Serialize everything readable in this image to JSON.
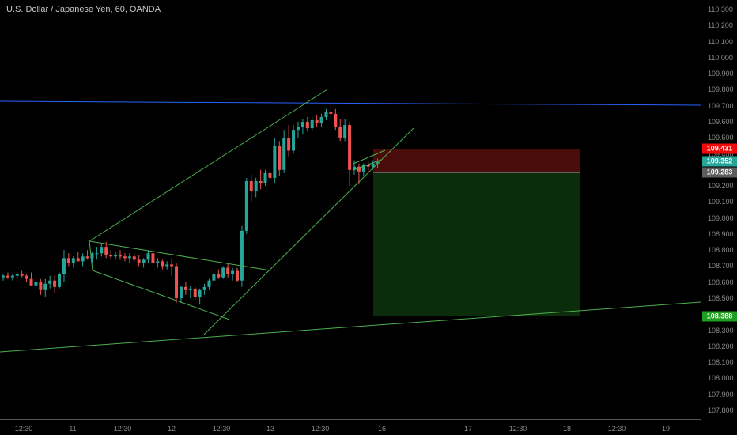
{
  "header": {
    "title": "U.S. Dollar / Japanese Yen, 60, OANDA"
  },
  "colors": {
    "up": "#26a69a",
    "down": "#ef5350",
    "trendline": "#4caf50",
    "resistance": "#2962ff",
    "stop_zone": "#4a0b0b",
    "target_zone": "#0c2d0c",
    "stop_tag": "#f20a0a",
    "current_tag": "#26a69a",
    "entry_tag": "#5d5d5d",
    "target_tag": "#1f9e1f"
  },
  "chart_data": {
    "type": "candlestick",
    "title": "U.S. Dollar / Japanese Yen, 60, OANDA",
    "x_ticks": [
      "12:30",
      "11",
      "12:30",
      "12",
      "12:30",
      "13",
      "12:30",
      "16",
      "17",
      "12:30",
      "18",
      "12:30",
      "19"
    ],
    "y_ticks": [
      "110.300",
      "110.200",
      "110.100",
      "110.000",
      "109.900",
      "109.800",
      "109.700",
      "109.600",
      "109.500",
      "109.400",
      "109.300",
      "109.200",
      "109.100",
      "109.000",
      "108.900",
      "108.800",
      "108.700",
      "108.600",
      "108.500",
      "108.400",
      "108.300",
      "108.200",
      "108.100",
      "108.000",
      "107.900",
      "107.800"
    ],
    "ylim": [
      107.77,
      110.335
    ],
    "price_labels": {
      "stop": "109.431",
      "current": "109.352",
      "entry": "109.283",
      "target": "108.388"
    },
    "position": {
      "entry": 109.283,
      "stop": 109.431,
      "target": 108.388
    },
    "candles": [
      [
        108.63,
        108.65,
        108.61,
        108.64
      ],
      [
        108.64,
        108.66,
        108.62,
        108.63
      ],
      [
        108.63,
        108.65,
        108.61,
        108.64
      ],
      [
        108.64,
        108.66,
        108.62,
        108.65
      ],
      [
        108.65,
        108.67,
        108.63,
        108.64
      ],
      [
        108.64,
        108.65,
        108.6,
        108.62
      ],
      [
        108.62,
        108.66,
        108.58,
        108.58
      ],
      [
        108.58,
        108.62,
        108.55,
        108.6
      ],
      [
        108.6,
        108.62,
        108.52,
        108.55
      ],
      [
        108.55,
        108.62,
        108.51,
        108.59
      ],
      [
        108.59,
        108.64,
        108.56,
        108.61
      ],
      [
        108.61,
        108.64,
        108.53,
        108.57
      ],
      [
        108.57,
        108.66,
        108.56,
        108.65
      ],
      [
        108.65,
        108.8,
        108.6,
        108.75
      ],
      [
        108.75,
        108.78,
        108.7,
        108.72
      ],
      [
        108.72,
        108.76,
        108.69,
        108.75
      ],
      [
        108.75,
        108.79,
        108.73,
        108.73
      ],
      [
        108.73,
        108.78,
        108.7,
        108.76
      ],
      [
        108.76,
        108.8,
        108.74,
        108.75
      ],
      [
        108.75,
        108.79,
        108.72,
        108.78
      ],
      [
        108.78,
        108.82,
        108.74,
        108.78
      ],
      [
        108.78,
        108.84,
        108.76,
        108.82
      ],
      [
        108.82,
        108.85,
        108.75,
        108.77
      ],
      [
        108.77,
        108.8,
        108.74,
        108.76
      ],
      [
        108.76,
        108.79,
        108.74,
        108.77
      ],
      [
        108.77,
        108.8,
        108.74,
        108.76
      ],
      [
        108.76,
        108.78,
        108.73,
        108.75
      ],
      [
        108.75,
        108.78,
        108.72,
        108.76
      ],
      [
        108.76,
        108.78,
        108.73,
        108.74
      ],
      [
        108.74,
        108.77,
        108.7,
        108.72
      ],
      [
        108.72,
        108.75,
        108.69,
        108.74
      ],
      [
        108.74,
        108.8,
        108.72,
        108.78
      ],
      [
        108.78,
        108.8,
        108.71,
        108.72
      ],
      [
        108.72,
        108.75,
        108.69,
        108.73
      ],
      [
        108.73,
        108.74,
        108.68,
        108.7
      ],
      [
        108.7,
        108.73,
        108.68,
        108.71
      ],
      [
        108.71,
        108.75,
        108.64,
        108.7
      ],
      [
        108.7,
        108.72,
        108.47,
        108.5
      ],
      [
        108.5,
        108.58,
        108.47,
        108.57
      ],
      [
        108.57,
        108.6,
        108.52,
        108.55
      ],
      [
        108.55,
        108.58,
        108.5,
        108.56
      ],
      [
        108.56,
        108.58,
        108.49,
        108.51
      ],
      [
        108.51,
        108.56,
        108.46,
        108.55
      ],
      [
        108.55,
        108.59,
        108.52,
        108.57
      ],
      [
        108.57,
        108.62,
        108.55,
        108.61
      ],
      [
        108.61,
        108.66,
        108.6,
        108.65
      ],
      [
        108.65,
        108.68,
        108.62,
        108.63
      ],
      [
        108.63,
        108.7,
        108.62,
        108.69
      ],
      [
        108.69,
        108.72,
        108.63,
        108.65
      ],
      [
        108.65,
        108.69,
        108.61,
        108.67
      ],
      [
        108.67,
        108.69,
        108.6,
        108.61
      ],
      [
        108.61,
        108.95,
        108.57,
        108.92
      ],
      [
        108.92,
        109.25,
        108.9,
        109.23
      ],
      [
        109.23,
        109.27,
        109.1,
        109.17
      ],
      [
        109.17,
        109.25,
        109.13,
        109.23
      ],
      [
        109.23,
        109.3,
        109.18,
        109.22
      ],
      [
        109.22,
        109.3,
        109.2,
        109.28
      ],
      [
        109.28,
        109.32,
        109.24,
        109.25
      ],
      [
        109.25,
        109.5,
        109.22,
        109.45
      ],
      [
        109.45,
        109.48,
        109.26,
        109.3
      ],
      [
        109.3,
        109.55,
        109.28,
        109.5
      ],
      [
        109.5,
        109.58,
        109.38,
        109.42
      ],
      [
        109.42,
        109.58,
        109.4,
        109.55
      ],
      [
        109.55,
        109.6,
        109.5,
        109.57
      ],
      [
        109.57,
        109.62,
        109.52,
        109.6
      ],
      [
        109.6,
        109.63,
        109.54,
        109.56
      ],
      [
        109.56,
        109.63,
        109.54,
        109.61
      ],
      [
        109.61,
        109.64,
        109.57,
        109.59
      ],
      [
        109.59,
        109.65,
        109.57,
        109.63
      ],
      [
        109.63,
        109.68,
        109.61,
        109.66
      ],
      [
        109.66,
        109.7,
        109.63,
        109.65
      ],
      [
        109.65,
        109.68,
        109.55,
        109.57
      ],
      [
        109.57,
        109.62,
        109.48,
        109.5
      ],
      [
        109.5,
        109.62,
        109.48,
        109.58
      ],
      [
        109.58,
        109.6,
        109.2,
        109.3
      ],
      [
        109.3,
        109.36,
        109.27,
        109.32
      ],
      [
        109.32,
        109.34,
        109.21,
        109.29
      ],
      [
        109.29,
        109.34,
        109.26,
        109.33
      ],
      [
        109.33,
        109.35,
        109.28,
        109.32
      ],
      [
        109.32,
        109.36,
        109.3,
        109.34
      ],
      [
        109.34,
        109.37,
        109.31,
        109.35
      ]
    ]
  }
}
